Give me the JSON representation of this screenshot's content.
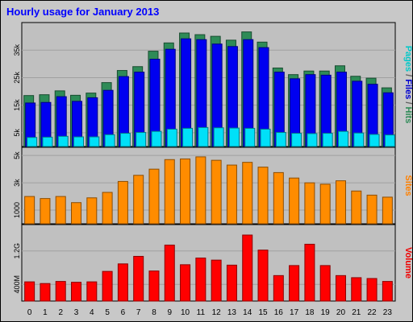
{
  "chart_data": {
    "type": "bar",
    "title": "Hourly usage for January 2013",
    "categories": [
      "0",
      "1",
      "2",
      "3",
      "4",
      "5",
      "6",
      "7",
      "8",
      "9",
      "10",
      "11",
      "12",
      "13",
      "14",
      "15",
      "16",
      "17",
      "18",
      "19",
      "20",
      "21",
      "22",
      "23"
    ],
    "panels": [
      {
        "id": "hits",
        "axis_labels": [
          {
            "text": "Pages",
            "color": "#00c8c8"
          },
          {
            "text": " / ",
            "color": "#606060"
          },
          {
            "text": "Files",
            "color": "#0000d0"
          },
          {
            "text": " / ",
            "color": "#606060"
          },
          {
            "text": "Hits",
            "color": "#2e8b57"
          }
        ],
        "yticks": [
          {
            "label": "5k",
            "value": 5000
          },
          {
            "label": "15k",
            "value": 15000
          },
          {
            "label": "25k",
            "value": 25000
          },
          {
            "label": "35k",
            "value": 35000
          }
        ],
        "ylim": [
          0,
          45000
        ],
        "series": [
          {
            "name": "Hits",
            "color": "#2e8b57",
            "values": [
              18500,
              18800,
              20200,
              18600,
              19400,
              23200,
              27600,
              29000,
              34600,
              37600,
              41200,
              40600,
              40000,
              38600,
              41600,
              37900,
              28500,
              26100,
              27400,
              27400,
              29300,
              25500,
              24800,
              21300
            ]
          },
          {
            "name": "Files",
            "color": "#0000f0",
            "values": [
              15800,
              16000,
              18100,
              16400,
              17700,
              20400,
              25400,
              27000,
              31700,
              35300,
              39100,
              38800,
              37200,
              36300,
              38800,
              35900,
              27000,
              24600,
              26100,
              25900,
              27000,
              23700,
              22600,
              19500
            ]
          },
          {
            "name": "Pages",
            "color": "#00e0f8",
            "values": [
              3300,
              3400,
              3700,
              3500,
              3500,
              4300,
              4800,
              5100,
              5500,
              6300,
              6600,
              6900,
              6800,
              6700,
              6600,
              6300,
              5100,
              4800,
              4700,
              4800,
              5500,
              4900,
              4400,
              4200
            ]
          }
        ]
      },
      {
        "id": "sites",
        "axis_labels": [
          {
            "text": "Sites",
            "color": "#ff8000"
          }
        ],
        "yticks": [
          {
            "label": "1000",
            "value": 1000
          },
          {
            "label": "3k",
            "value": 3000
          },
          {
            "label": "5k",
            "value": 5000
          }
        ],
        "ylim": [
          0,
          5600
        ],
        "series": [
          {
            "name": "Sites",
            "color": "#ff8c00",
            "values": [
              2000,
              1850,
              2000,
              1550,
              1900,
              2300,
              3100,
              3550,
              4000,
              4700,
              4750,
              4900,
              4650,
              4300,
              4500,
              4150,
              3750,
              3350,
              3000,
              2900,
              3150,
              2400,
              2100,
              1950
            ]
          }
        ]
      },
      {
        "id": "volume",
        "axis_labels": [
          {
            "text": "Volume",
            "color": "#f00000"
          }
        ],
        "yticks": [
          {
            "label": "400M",
            "value": 400
          },
          {
            "label": "1.2G",
            "value": 1200
          }
        ],
        "ylim": [
          0,
          1830
        ],
        "series": [
          {
            "name": "Volume",
            "color": "#ff0000",
            "values": [
              460,
              420,
              470,
              450,
              460,
              710,
              890,
              1070,
              720,
              1340,
              870,
              1030,
              980,
              860,
              1580,
              1220,
              610,
              850,
              1360,
              850,
              610,
              560,
              540,
              470
            ]
          }
        ]
      }
    ]
  }
}
